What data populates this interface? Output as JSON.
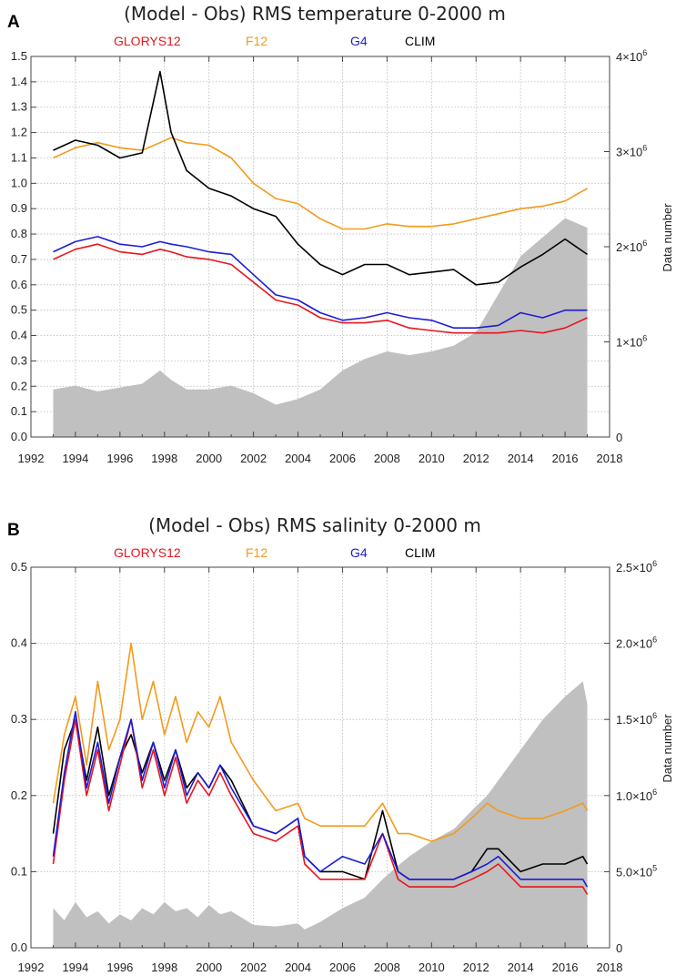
{
  "chart_data": [
    {
      "panel": "A",
      "type": "line",
      "title": "(Model - Obs) RMS temperature 0-2000 m",
      "xlim": [
        1992,
        2018
      ],
      "ylim": [
        0.0,
        1.5
      ],
      "y2lim": [
        0,
        4000000
      ],
      "xticks": [
        "1992",
        "1994",
        "1996",
        "1998",
        "2000",
        "2002",
        "2004",
        "2006",
        "2008",
        "2010",
        "2012",
        "2014",
        "2016",
        "2018"
      ],
      "yticks": [
        "0.0",
        "0.1",
        "0.2",
        "0.3",
        "0.4",
        "0.5",
        "0.6",
        "0.7",
        "0.8",
        "0.9",
        "1.0",
        "1.1",
        "1.2",
        "1.3",
        "1.4",
        "1.5"
      ],
      "y2ticks": [
        {
          "base": "0",
          "exp": ""
        },
        {
          "base": "1×10",
          "exp": "6"
        },
        {
          "base": "2×10",
          "exp": "6"
        },
        {
          "base": "3×10",
          "exp": "6"
        },
        {
          "base": "4×10",
          "exp": "6"
        }
      ],
      "y2label": "Data number",
      "legend": [
        "GLORYS12",
        "F12",
        "G4",
        "CLIM"
      ],
      "colors": {
        "GLORYS12": "#e8141e",
        "F12": "#f39a1c",
        "G4": "#1c1cd6",
        "CLIM": "#000000",
        "data": "#c0c0c0"
      },
      "x": [
        1993.0,
        1994.0,
        1995.0,
        1996.0,
        1997.0,
        1997.8,
        1998.3,
        1999.0,
        2000.0,
        2001.0,
        2002.0,
        2003.0,
        2004.0,
        2005.0,
        2006.0,
        2007.0,
        2008.0,
        2009.0,
        2010.0,
        2011.0,
        2012.0,
        2013.0,
        2014.0,
        2015.0,
        2016.0,
        2017.0
      ],
      "series": [
        {
          "name": "GLORYS12",
          "values": [
            0.7,
            0.74,
            0.76,
            0.73,
            0.72,
            0.74,
            0.73,
            0.71,
            0.7,
            0.68,
            0.61,
            0.54,
            0.52,
            0.47,
            0.45,
            0.45,
            0.46,
            0.43,
            0.42,
            0.41,
            0.41,
            0.41,
            0.42,
            0.41,
            0.43,
            0.47
          ]
        },
        {
          "name": "F12",
          "values": [
            1.1,
            1.14,
            1.16,
            1.14,
            1.13,
            1.16,
            1.18,
            1.16,
            1.15,
            1.1,
            1.0,
            0.94,
            0.92,
            0.86,
            0.82,
            0.82,
            0.84,
            0.83,
            0.83,
            0.84,
            0.86,
            0.88,
            0.9,
            0.91,
            0.93,
            0.98
          ]
        },
        {
          "name": "G4",
          "values": [
            0.73,
            0.77,
            0.79,
            0.76,
            0.75,
            0.77,
            0.76,
            0.75,
            0.73,
            0.72,
            0.64,
            0.56,
            0.54,
            0.49,
            0.46,
            0.47,
            0.49,
            0.47,
            0.46,
            0.43,
            0.43,
            0.44,
            0.49,
            0.47,
            0.5,
            0.5
          ]
        },
        {
          "name": "CLIM",
          "values": [
            1.13,
            1.17,
            1.15,
            1.1,
            1.12,
            1.44,
            1.2,
            1.05,
            0.98,
            0.95,
            0.9,
            0.87,
            0.76,
            0.68,
            0.64,
            0.68,
            0.68,
            0.64,
            0.65,
            0.66,
            0.6,
            0.61,
            0.67,
            0.72,
            0.78,
            0.72
          ]
        },
        {
          "name": "Data number",
          "axis": "right",
          "values": [
            500000,
            540000,
            480000,
            520000,
            560000,
            700000,
            600000,
            500000,
            500000,
            540000,
            460000,
            340000,
            400000,
            500000,
            700000,
            820000,
            900000,
            860000,
            900000,
            960000,
            1100000,
            1500000,
            1900000,
            2100000,
            2300000,
            2200000
          ]
        }
      ]
    },
    {
      "panel": "B",
      "type": "line",
      "title": "(Model - Obs) RMS salinity 0-2000 m",
      "xlim": [
        1992,
        2018
      ],
      "ylim": [
        0.0,
        0.5
      ],
      "y2lim": [
        0,
        2500000
      ],
      "xticks": [
        "1992",
        "1994",
        "1996",
        "1998",
        "2000",
        "2002",
        "2004",
        "2006",
        "2008",
        "2010",
        "2012",
        "2014",
        "2016",
        "2018"
      ],
      "yticks": [
        "0.0",
        "0.1",
        "0.2",
        "0.3",
        "0.4",
        "0.5"
      ],
      "y2ticks": [
        {
          "base": "0",
          "exp": ""
        },
        {
          "base": "5.0×10",
          "exp": "5"
        },
        {
          "base": "1.0×10",
          "exp": "6"
        },
        {
          "base": "1.5×10",
          "exp": "6"
        },
        {
          "base": "2.0×10",
          "exp": "6"
        },
        {
          "base": "2.5×10",
          "exp": "6"
        }
      ],
      "y2label": "Data number",
      "legend": [
        "GLORYS12",
        "F12",
        "G4",
        "CLIM"
      ],
      "colors": {
        "GLORYS12": "#e8141e",
        "F12": "#f39a1c",
        "G4": "#1c1cd6",
        "CLIM": "#000000",
        "data": "#c0c0c0"
      },
      "x": [
        1993.0,
        1993.5,
        1994.0,
        1994.5,
        1995.0,
        1995.5,
        1996.0,
        1996.5,
        1997.0,
        1997.5,
        1998.0,
        1998.5,
        1999.0,
        1999.5,
        2000.0,
        2000.5,
        2001.0,
        2002.0,
        2003.0,
        2004.0,
        2004.3,
        2005.0,
        2006.0,
        2007.0,
        2007.8,
        2008.5,
        2009.0,
        2010.0,
        2011.0,
        2011.8,
        2012.5,
        2013.0,
        2014.0,
        2015.0,
        2016.0,
        2016.8,
        2017.0
      ],
      "series": [
        {
          "name": "GLORYS12",
          "values": [
            0.11,
            0.22,
            0.3,
            0.2,
            0.26,
            0.18,
            0.24,
            0.3,
            0.21,
            0.26,
            0.2,
            0.25,
            0.19,
            0.22,
            0.2,
            0.23,
            0.2,
            0.15,
            0.14,
            0.16,
            0.11,
            0.09,
            0.09,
            0.09,
            0.15,
            0.09,
            0.08,
            0.08,
            0.08,
            0.09,
            0.1,
            0.11,
            0.08,
            0.08,
            0.08,
            0.08,
            0.07
          ]
        },
        {
          "name": "F12",
          "values": [
            0.19,
            0.28,
            0.33,
            0.24,
            0.35,
            0.26,
            0.3,
            0.4,
            0.3,
            0.35,
            0.28,
            0.33,
            0.27,
            0.31,
            0.29,
            0.33,
            0.27,
            0.22,
            0.18,
            0.19,
            0.17,
            0.16,
            0.16,
            0.16,
            0.19,
            0.15,
            0.15,
            0.14,
            0.15,
            0.17,
            0.19,
            0.18,
            0.17,
            0.17,
            0.18,
            0.19,
            0.18
          ]
        },
        {
          "name": "G4",
          "values": [
            0.12,
            0.23,
            0.31,
            0.21,
            0.27,
            0.19,
            0.25,
            0.3,
            0.22,
            0.27,
            0.21,
            0.26,
            0.2,
            0.23,
            0.21,
            0.24,
            0.21,
            0.16,
            0.15,
            0.17,
            0.12,
            0.1,
            0.12,
            0.11,
            0.15,
            0.1,
            0.09,
            0.09,
            0.09,
            0.1,
            0.11,
            0.12,
            0.09,
            0.09,
            0.09,
            0.09,
            0.08
          ]
        },
        {
          "name": "CLIM",
          "values": [
            0.15,
            0.26,
            0.3,
            0.22,
            0.29,
            0.2,
            0.25,
            0.28,
            0.23,
            0.27,
            0.22,
            0.26,
            0.21,
            0.23,
            0.21,
            0.24,
            0.22,
            0.16,
            0.15,
            0.17,
            0.12,
            0.1,
            0.1,
            0.09,
            0.18,
            0.1,
            0.09,
            0.09,
            0.09,
            0.1,
            0.13,
            0.13,
            0.1,
            0.11,
            0.11,
            0.12,
            0.11
          ]
        },
        {
          "name": "Data number",
          "axis": "right",
          "values": [
            260000,
            180000,
            300000,
            200000,
            240000,
            160000,
            220000,
            180000,
            260000,
            220000,
            300000,
            240000,
            260000,
            200000,
            280000,
            220000,
            240000,
            150000,
            140000,
            160000,
            120000,
            170000,
            260000,
            330000,
            450000,
            540000,
            600000,
            700000,
            780000,
            900000,
            1000000,
            1100000,
            1300000,
            1500000,
            1650000,
            1750000,
            1600000
          ]
        }
      ]
    }
  ]
}
